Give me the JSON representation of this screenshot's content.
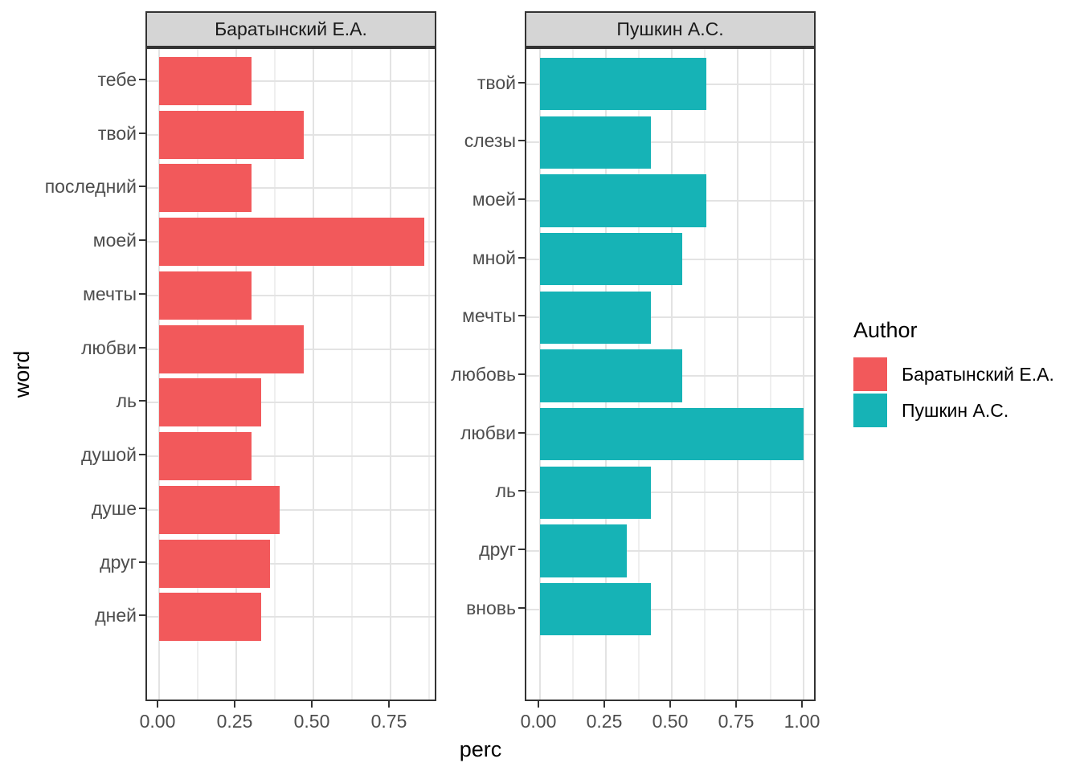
{
  "figure": {
    "x_axis_title": "perc",
    "y_axis_title": "word",
    "legend": {
      "title": "Author",
      "entries": [
        {
          "label": "Баратынский Е.А.",
          "color": "#F2595B"
        },
        {
          "label": "Пушкин А.С.",
          "color": "#16B3B6"
        }
      ]
    }
  },
  "chart_data": [
    {
      "type": "bar",
      "orientation": "horizontal",
      "facet": "Баратынский Е.А.",
      "series_name": "Баратынский Е.А.",
      "color": "#F2595B",
      "categories": [
        "тебе",
        "твой",
        "последний",
        "моей",
        "мечты",
        "любви",
        "ль",
        "душой",
        "душе",
        "друг",
        "дней"
      ],
      "values": [
        0.3,
        0.47,
        0.3,
        0.86,
        0.3,
        0.47,
        0.33,
        0.3,
        0.39,
        0.36,
        0.33
      ],
      "xlabel": "perc",
      "ylabel": "word",
      "xlim": [
        -0.04,
        0.9
      ],
      "x_ticks": [
        0,
        0.25,
        0.5,
        0.75
      ],
      "x_tick_labels": [
        "0.00",
        "0.25",
        "0.50",
        "0.75"
      ],
      "x_minor_ticks": [
        0.125,
        0.375,
        0.625,
        0.875
      ],
      "grid": "major+minor",
      "legend_position": "right"
    },
    {
      "type": "bar",
      "orientation": "horizontal",
      "facet": "Пушкин А.С.",
      "series_name": "Пушкин А.С.",
      "color": "#16B3B6",
      "categories": [
        "твой",
        "слезы",
        "моей",
        "мной",
        "мечты",
        "любовь",
        "любви",
        "ль",
        "друг",
        "вновь"
      ],
      "values": [
        0.63,
        0.42,
        0.63,
        0.54,
        0.42,
        0.54,
        1.0,
        0.42,
        0.33,
        0.42
      ],
      "xlabel": "perc",
      "ylabel": "word",
      "xlim": [
        -0.05,
        1.05
      ],
      "x_ticks": [
        0,
        0.25,
        0.5,
        0.75,
        1.0
      ],
      "x_tick_labels": [
        "0.00",
        "0.25",
        "0.50",
        "0.75",
        "1.00"
      ],
      "x_minor_ticks": [
        0.125,
        0.375,
        0.625,
        0.875
      ],
      "grid": "major+minor",
      "legend_position": "right"
    }
  ]
}
